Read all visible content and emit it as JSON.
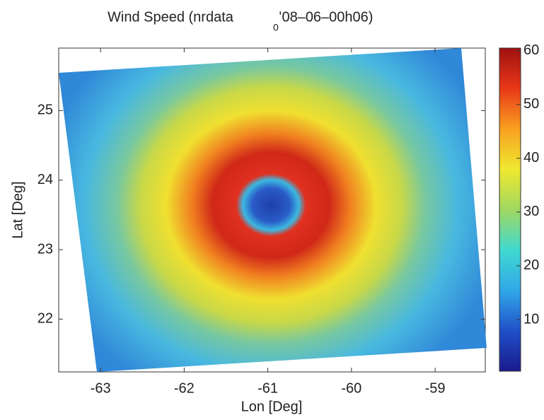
{
  "chart_data": {
    "type": "heatmap",
    "title_parts": [
      "Wind Speed (nrdata",
      "0",
      "’08–06–00h06)"
    ],
    "xlabel": "Lon [Deg]",
    "ylabel": "Lat [Deg]",
    "xlim": [
      -63.5,
      -58.4
    ],
    "xticks": [
      -63,
      -62,
      -61,
      -60,
      -59
    ],
    "ylim": [
      21.24,
      25.9
    ],
    "yticks": [
      22,
      23,
      24,
      25
    ],
    "colorbar": {
      "lim": [
        0.4,
        60.5
      ],
      "ticks": [
        10,
        20,
        30,
        40,
        50,
        60
      ],
      "colormap": [
        "#1a1a8c",
        "#2050c8",
        "#30a8e8",
        "#40d8d0",
        "#a0d860",
        "#f0e830",
        "#f8a020",
        "#e83818",
        "#a01010"
      ]
    }
  }
}
